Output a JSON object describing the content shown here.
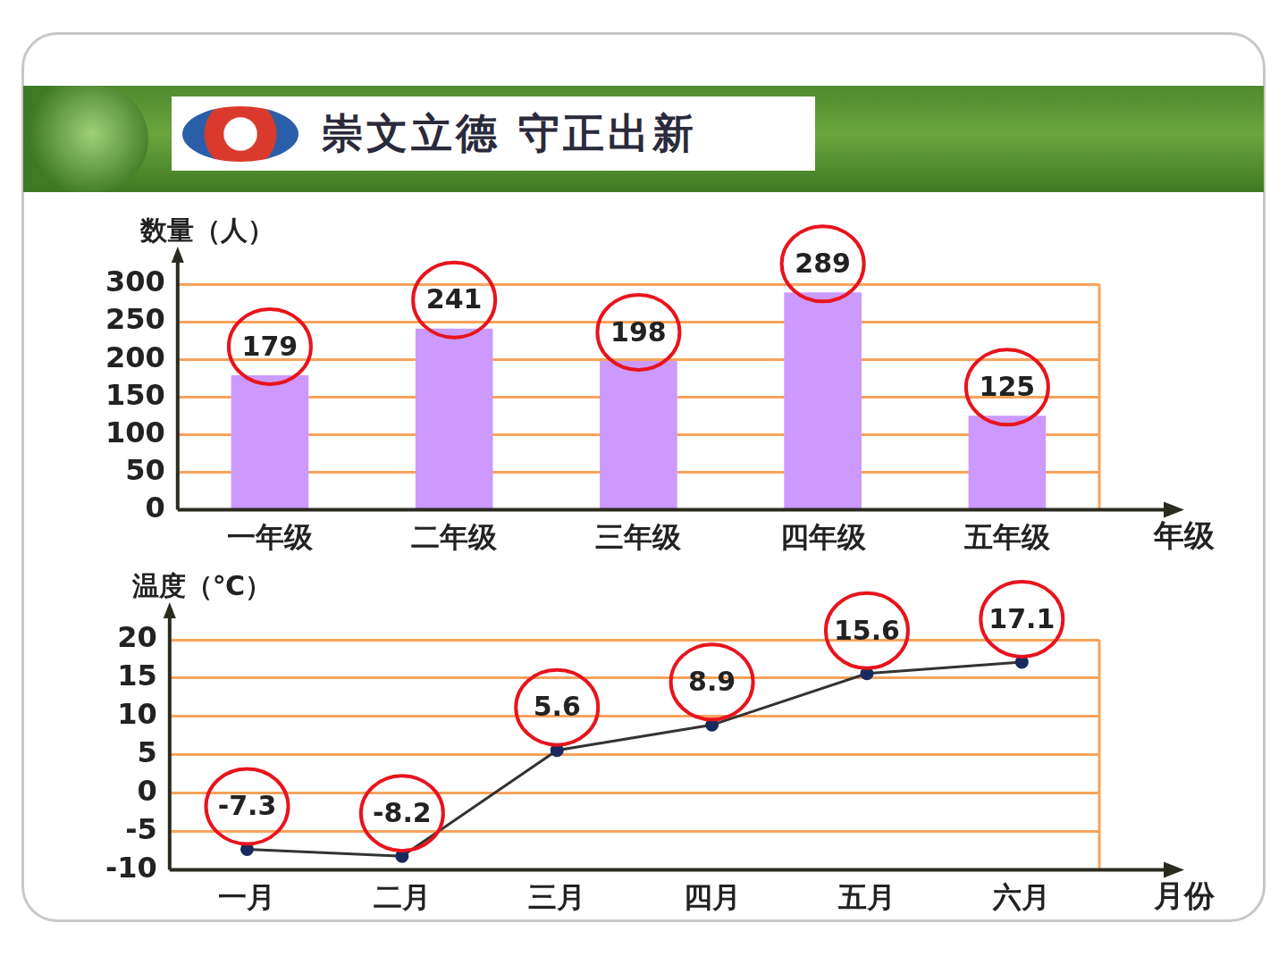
{
  "header": {
    "motto": "崇文立德 守正出新"
  },
  "chart_data": [
    {
      "type": "bar",
      "categories": [
        "一年级",
        "二年级",
        "三年级",
        "四年级",
        "五年级"
      ],
      "values": [
        179,
        241,
        198,
        289,
        125
      ],
      "color": "#cc99ff",
      "y_label": "数量（人）",
      "x_label": "年级",
      "ylim": [
        0,
        300
      ],
      "yticks": [
        0,
        50,
        100,
        150,
        200,
        250,
        300
      ],
      "grid": true,
      "data_labels": true
    },
    {
      "type": "line",
      "categories": [
        "一月",
        "二月",
        "三月",
        "四月",
        "五月",
        "六月"
      ],
      "values": [
        -7.3,
        -8.2,
        5.6,
        8.9,
        15.6,
        17.1
      ],
      "color": "#333333",
      "marker": "circle",
      "line_style": "solid",
      "y_label": "温度（℃）",
      "x_label": "月份",
      "ylim": [
        -10,
        20
      ],
      "yticks": [
        -10,
        -5,
        0,
        5,
        10,
        15,
        20
      ],
      "grid": true,
      "data_labels": true
    }
  ]
}
